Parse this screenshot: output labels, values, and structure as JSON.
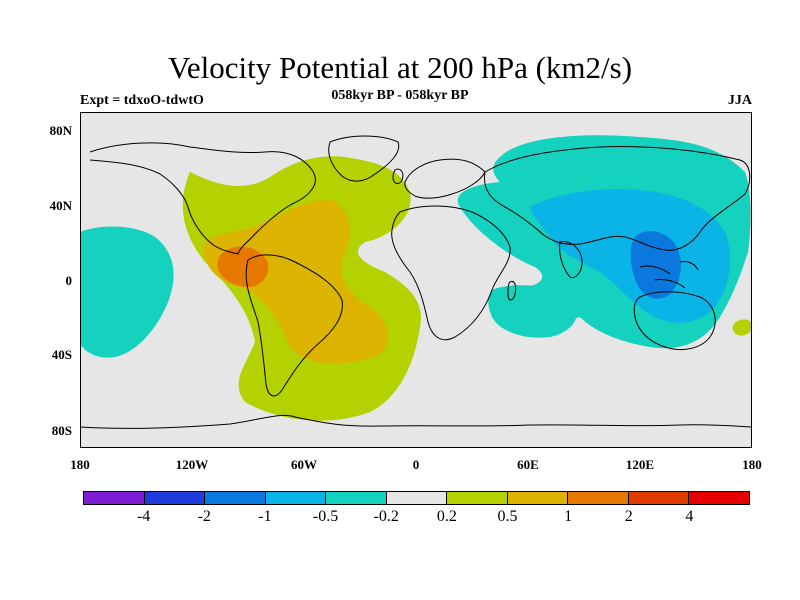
{
  "title": "Velocity Potential at 200 hPa (km2/s)",
  "subtitle": "058kyr BP - 058kyr BP",
  "left_label": "Expt = tdxoO-tdwtO",
  "right_label": "JJA",
  "axes": {
    "lat_labels": [
      "80N",
      "40N",
      "0",
      "40S",
      "80S"
    ],
    "lon_labels": [
      "180",
      "120W",
      "60W",
      "0",
      "60E",
      "120E",
      "180"
    ]
  },
  "colorbar": {
    "colors": [
      "#7d1ed4",
      "#1e3cdc",
      "#0a78dc",
      "#0ab4e6",
      "#14d2be",
      "#e6e6e6",
      "#b4d200",
      "#dcb400",
      "#e67800",
      "#e03c00",
      "#e60000"
    ],
    "labels": [
      "-4",
      "-2",
      "-1",
      "-0.5",
      "-0.2",
      "0.2",
      "0.5",
      "1",
      "2",
      "4"
    ]
  },
  "colors": {
    "background_field": "#e6e6e6",
    "coastline": "#000000"
  }
}
